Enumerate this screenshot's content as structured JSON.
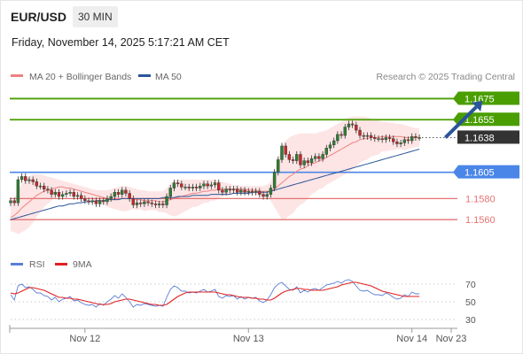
{
  "header": {
    "symbol": "EUR/USD",
    "timeframe": "30 MIN",
    "timestamp": "Friday, November 14, 2025 5:17:21 AM CET"
  },
  "colors": {
    "resistance": "#4a9e00",
    "support": "#e57373",
    "pivot": "#4a86e8",
    "current": "#333333",
    "ma20": "#f08080",
    "ma50": "#2a5599",
    "bollinger_fill": "#fde0e0",
    "candle_up": "#2e7d32",
    "candle_down": "#c62828",
    "rsi": "#5b7fd6",
    "rsi_ma": "#e02020",
    "arrow": "#2a5599"
  },
  "chart_data": [
    {
      "type": "candlestick",
      "legend": [
        {
          "name": "MA 20 + Bollinger Bands",
          "color": "#f08080"
        },
        {
          "name": "MA 50",
          "color": "#2a5599"
        }
      ],
      "legend_position": "top-left",
      "credit": "Research © 2025 Trading Central",
      "ylim": [
        1.1545,
        1.1688
      ],
      "xlim": [
        0,
        120
      ],
      "x_ticks": [
        {
          "label": "Nov 12",
          "x": 20
        },
        {
          "label": "Nov 13",
          "x": 64
        },
        {
          "label": "Nov 14",
          "x": 108
        },
        {
          "label": "Nov 23",
          "x": 125
        }
      ],
      "levels": [
        {
          "label": "1.1675",
          "value": 1.1675,
          "kind": "resistance"
        },
        {
          "label": "1.1655",
          "value": 1.1655,
          "kind": "resistance"
        },
        {
          "label": "1.1638",
          "value": 1.1638,
          "kind": "current"
        },
        {
          "label": "1.1605",
          "value": 1.1605,
          "kind": "pivot"
        },
        {
          "label": "1.1580",
          "value": 1.158,
          "kind": "support"
        },
        {
          "label": "1.1560",
          "value": 1.156,
          "kind": "support"
        }
      ],
      "projection": {
        "from": [
          117,
          1.1638
        ],
        "to": [
          127,
          1.1673
        ]
      },
      "closes": [
        1.1578,
        1.1576,
        1.1598,
        1.1601,
        1.1597,
        1.1598,
        1.1596,
        1.1592,
        1.1592,
        1.1589,
        1.1588,
        1.1584,
        1.1586,
        1.1582,
        1.1584,
        1.1585,
        1.1586,
        1.1582,
        1.1583,
        1.158,
        1.1578,
        1.1577,
        1.1578,
        1.1575,
        1.1578,
        1.1577,
        1.158,
        1.1582,
        1.1586,
        1.1584,
        1.1588,
        1.1585,
        1.158,
        1.1574,
        1.1576,
        1.1575,
        1.1577,
        1.1576,
        1.1575,
        1.1574,
        1.1575,
        1.1574,
        1.1582,
        1.159,
        1.1595,
        1.1594,
        1.1591,
        1.1591,
        1.159,
        1.1591,
        1.159,
        1.1592,
        1.1594,
        1.1592,
        1.1593,
        1.1595,
        1.1588,
        1.1586,
        1.1589,
        1.1588,
        1.1589,
        1.1586,
        1.1588,
        1.1586,
        1.1587,
        1.1586,
        1.1587,
        1.1584,
        1.1582,
        1.1584,
        1.159,
        1.1605,
        1.1617,
        1.163,
        1.1622,
        1.1617,
        1.1616,
        1.1622,
        1.1612,
        1.1616,
        1.1614,
        1.1618,
        1.162,
        1.1618,
        1.1622,
        1.1628,
        1.1631,
        1.1635,
        1.1641,
        1.164,
        1.1648,
        1.1651,
        1.165,
        1.1645,
        1.164,
        1.1639,
        1.164,
        1.1638,
        1.1637,
        1.1637,
        1.1636,
        1.1638,
        1.1637,
        1.1634,
        1.1632,
        1.1633,
        1.1636,
        1.1635,
        1.1639,
        1.1638,
        1.1638
      ],
      "ma20": [
        1.1562,
        1.1564,
        1.1567,
        1.1571,
        1.1574,
        1.1577,
        1.158,
        1.1583,
        1.1585,
        1.1587,
        1.1588,
        1.1589,
        1.159,
        1.1591,
        1.1591,
        1.159,
        1.159,
        1.1589,
        1.1588,
        1.1587,
        1.1586,
        1.1585,
        1.1584,
        1.1583,
        1.1582,
        1.1581,
        1.158,
        1.158,
        1.158,
        1.158,
        1.158,
        1.158,
        1.158,
        1.158,
        1.1579,
        1.1579,
        1.1578,
        1.1578,
        1.1578,
        1.1578,
        1.1577,
        1.1577,
        1.1578,
        1.1579,
        1.158,
        1.1581,
        1.1582,
        1.1583,
        1.1584,
        1.1585,
        1.1585,
        1.1586,
        1.1587,
        1.1587,
        1.1588,
        1.1588,
        1.1589,
        1.1589,
        1.1589,
        1.1589,
        1.1589,
        1.1589,
        1.1589,
        1.1589,
        1.1588,
        1.1588,
        1.1588,
        1.1587,
        1.1587,
        1.1587,
        1.1587,
        1.1589,
        1.1592,
        1.1595,
        1.1598,
        1.1601,
        1.1603,
        1.1606,
        1.1608,
        1.1609,
        1.1611,
        1.1613,
        1.1614,
        1.1616,
        1.1617,
        1.1619,
        1.1621,
        1.1623,
        1.1625,
        1.1627,
        1.1629,
        1.1631,
        1.1633,
        1.1634,
        1.1636,
        1.1637,
        1.1637,
        1.1638,
        1.1638,
        1.1638,
        1.1639,
        1.1639,
        1.1639,
        1.1639,
        1.1639,
        1.1639,
        1.1638,
        1.1638,
        1.1638,
        1.1638,
        1.1638
      ],
      "bb_upper": [
        1.1575,
        1.158,
        1.1588,
        1.1594,
        1.1598,
        1.1601,
        1.1603,
        1.1603,
        1.1603,
        1.1602,
        1.1601,
        1.16,
        1.1599,
        1.1598,
        1.1597,
        1.1596,
        1.1595,
        1.1594,
        1.1593,
        1.1592,
        1.1591,
        1.159,
        1.1589,
        1.1588,
        1.1588,
        1.1588,
        1.1588,
        1.1589,
        1.159,
        1.1591,
        1.1592,
        1.1592,
        1.1591,
        1.159,
        1.1589,
        1.1588,
        1.1588,
        1.1587,
        1.1587,
        1.1587,
        1.1587,
        1.1587,
        1.159,
        1.1594,
        1.1597,
        1.1598,
        1.1598,
        1.1598,
        1.1598,
        1.1598,
        1.1598,
        1.1598,
        1.1598,
        1.1598,
        1.1598,
        1.1598,
        1.1597,
        1.1596,
        1.1595,
        1.1594,
        1.1593,
        1.1593,
        1.1592,
        1.1592,
        1.1592,
        1.1592,
        1.1592,
        1.1592,
        1.1592,
        1.1593,
        1.1596,
        1.1606,
        1.1618,
        1.163,
        1.1635,
        1.1638,
        1.164,
        1.1641,
        1.1642,
        1.1642,
        1.1642,
        1.1642,
        1.1642,
        1.1643,
        1.1644,
        1.1645,
        1.1647,
        1.1649,
        1.1651,
        1.1653,
        1.1655,
        1.1657,
        1.1658,
        1.1658,
        1.1658,
        1.1658,
        1.1657,
        1.1656,
        1.1655,
        1.1654,
        1.1653,
        1.1653,
        1.1652,
        1.1652,
        1.1651,
        1.1651,
        1.165,
        1.1649,
        1.1648,
        1.1647,
        1.1647
      ],
      "bb_lower": [
        1.1549,
        1.1548,
        1.1546,
        1.1548,
        1.155,
        1.1553,
        1.1557,
        1.1563,
        1.1567,
        1.1572,
        1.1575,
        1.1578,
        1.1581,
        1.1584,
        1.1585,
        1.1584,
        1.1585,
        1.1584,
        1.1583,
        1.1582,
        1.1581,
        1.158,
        1.1579,
        1.1578,
        1.1576,
        1.1574,
        1.1572,
        1.1571,
        1.157,
        1.1569,
        1.1568,
        1.1568,
        1.1569,
        1.157,
        1.1569,
        1.157,
        1.1568,
        1.1569,
        1.1569,
        1.1569,
        1.1567,
        1.1567,
        1.1566,
        1.1564,
        1.1563,
        1.1564,
        1.1566,
        1.1568,
        1.157,
        1.1572,
        1.1572,
        1.1574,
        1.1576,
        1.1576,
        1.1578,
        1.1578,
        1.1581,
        1.1582,
        1.1583,
        1.1584,
        1.1585,
        1.1585,
        1.1586,
        1.1586,
        1.1584,
        1.1584,
        1.1584,
        1.1582,
        1.1582,
        1.1581,
        1.1578,
        1.1572,
        1.1566,
        1.156,
        1.1561,
        1.1564,
        1.1566,
        1.1571,
        1.1574,
        1.1576,
        1.158,
        1.1584,
        1.1586,
        1.1589,
        1.159,
        1.1593,
        1.1595,
        1.1597,
        1.1599,
        1.1601,
        1.1603,
        1.1605,
        1.1608,
        1.161,
        1.1614,
        1.1616,
        1.1617,
        1.162,
        1.1621,
        1.1622,
        1.1625,
        1.1625,
        1.1626,
        1.1626,
        1.1627,
        1.1627,
        1.1626,
        1.1627,
        1.1628,
        1.1629,
        1.1629
      ],
      "ma50": [
        1.156,
        1.1561,
        1.1562,
        1.1563,
        1.1564,
        1.1565,
        1.1566,
        1.1567,
        1.1568,
        1.1569,
        1.157,
        1.1571,
        1.1572,
        1.1573,
        1.1573,
        1.1574,
        1.1575,
        1.1575,
        1.1576,
        1.1576,
        1.1577,
        1.1577,
        1.1577,
        1.1578,
        1.1578,
        1.1578,
        1.1579,
        1.1579,
        1.1579,
        1.1579,
        1.158,
        1.158,
        1.158,
        1.158,
        1.158,
        1.158,
        1.158,
        1.158,
        1.158,
        1.158,
        1.158,
        1.1581,
        1.1581,
        1.1581,
        1.1581,
        1.1582,
        1.1582,
        1.1582,
        1.1582,
        1.1583,
        1.1583,
        1.1583,
        1.1583,
        1.1583,
        1.1584,
        1.1584,
        1.1584,
        1.1584,
        1.1584,
        1.1584,
        1.1585,
        1.1585,
        1.1585,
        1.1585,
        1.1585,
        1.1586,
        1.1586,
        1.1586,
        1.1586,
        1.1586,
        1.1587,
        1.1588,
        1.1589,
        1.159,
        1.1591,
        1.1592,
        1.1593,
        1.1594,
        1.1595,
        1.1596,
        1.1597,
        1.1598,
        1.1599,
        1.16,
        1.1601,
        1.1602,
        1.1603,
        1.1604,
        1.1605,
        1.1606,
        1.1607,
        1.1608,
        1.1609,
        1.161,
        1.1611,
        1.1612,
        1.1613,
        1.1614,
        1.1615,
        1.1616,
        1.1617,
        1.1618,
        1.1619,
        1.162,
        1.1621,
        1.1622,
        1.1623,
        1.1624,
        1.1625,
        1.1626,
        1.1627
      ]
    },
    {
      "type": "line",
      "legend": [
        {
          "name": "RSI",
          "color": "#5b7fd6"
        },
        {
          "name": "9MA",
          "color": "#e02020"
        }
      ],
      "legend_position": "top-left",
      "ylim": [
        25,
        78
      ],
      "y_ticks": [
        "70",
        "50",
        "30"
      ],
      "y_tick_values": [
        70,
        50,
        30
      ],
      "rsi": [
        58,
        52,
        68,
        70,
        66,
        67,
        64,
        60,
        60,
        57,
        56,
        52,
        55,
        50,
        53,
        54,
        56,
        51,
        52,
        49,
        47,
        46,
        47,
        44,
        48,
        46,
        50,
        53,
        57,
        54,
        59,
        55,
        50,
        44,
        47,
        46,
        48,
        47,
        46,
        45,
        46,
        45,
        55,
        64,
        68,
        66,
        62,
        62,
        60,
        61,
        60,
        62,
        64,
        61,
        62,
        64,
        56,
        54,
        57,
        56,
        57,
        53,
        56,
        53,
        55,
        54,
        55,
        51,
        49,
        52,
        58,
        66,
        70,
        72,
        68,
        64,
        63,
        67,
        60,
        63,
        61,
        64,
        65,
        63,
        66,
        69,
        70,
        71,
        73,
        71,
        74,
        75,
        73,
        68,
        63,
        62,
        63,
        60,
        58,
        58,
        57,
        60,
        58,
        55,
        53,
        54,
        58,
        56,
        61,
        59,
        59
      ],
      "rsi_ma": [
        60,
        59,
        60,
        62,
        64,
        66,
        66,
        65,
        64,
        63,
        61,
        59,
        57,
        55,
        55,
        54,
        54,
        53,
        53,
        52,
        51,
        50,
        49,
        48,
        47,
        47,
        47,
        48,
        50,
        51,
        52,
        53,
        53,
        52,
        51,
        50,
        49,
        48,
        47,
        47,
        46,
        46,
        47,
        50,
        53,
        56,
        58,
        60,
        61,
        61,
        61,
        61,
        61,
        61,
        61,
        61,
        60,
        59,
        58,
        58,
        57,
        56,
        55,
        55,
        55,
        54,
        54,
        53,
        53,
        52,
        52,
        54,
        57,
        60,
        62,
        63,
        64,
        65,
        65,
        64,
        64,
        63,
        63,
        63,
        63,
        64,
        65,
        66,
        67,
        69,
        70,
        71,
        72,
        72,
        71,
        70,
        69,
        68,
        66,
        64,
        62,
        61,
        60,
        59,
        58,
        57,
        56,
        56,
        56,
        56,
        56
      ]
    }
  ]
}
